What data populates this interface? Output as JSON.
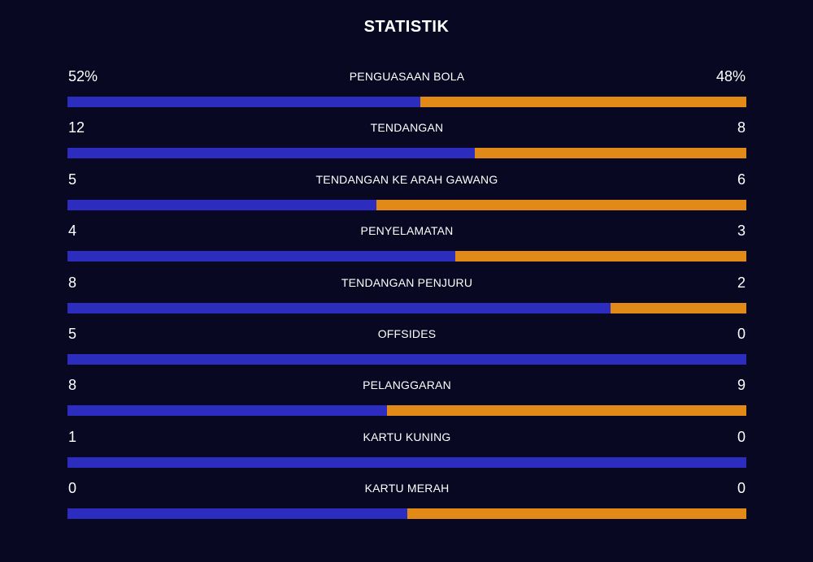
{
  "title": "STATISTIK",
  "colors": {
    "background": "#080823",
    "home": "#2c2dbf",
    "away": "#e28a17",
    "text": "#ffffff"
  },
  "chart_data": {
    "type": "bar",
    "title": "STATISTIK",
    "orientation": "horizontal-split",
    "categories": [
      "PENGUASAAN BOLA",
      "TENDANGAN",
      "TENDANGAN KE ARAH GAWANG",
      "PENYELAMATAN",
      "TENDANGAN PENJURU",
      "OFFSIDES",
      "PELANGGARAN",
      "KARTU KUNING",
      "KARTU MERAH"
    ],
    "series": [
      {
        "values": [
          52,
          12,
          5,
          4,
          8,
          5,
          8,
          1,
          0
        ]
      },
      {
        "values": [
          48,
          8,
          6,
          3,
          2,
          0,
          9,
          0,
          0
        ]
      }
    ],
    "display_left": [
      "52%",
      "12",
      "5",
      "4",
      "8",
      "5",
      "8",
      "1",
      "0"
    ],
    "display_right": [
      "48%",
      "8",
      "6",
      "3",
      "2",
      "0",
      "9",
      "0",
      "0"
    ]
  }
}
